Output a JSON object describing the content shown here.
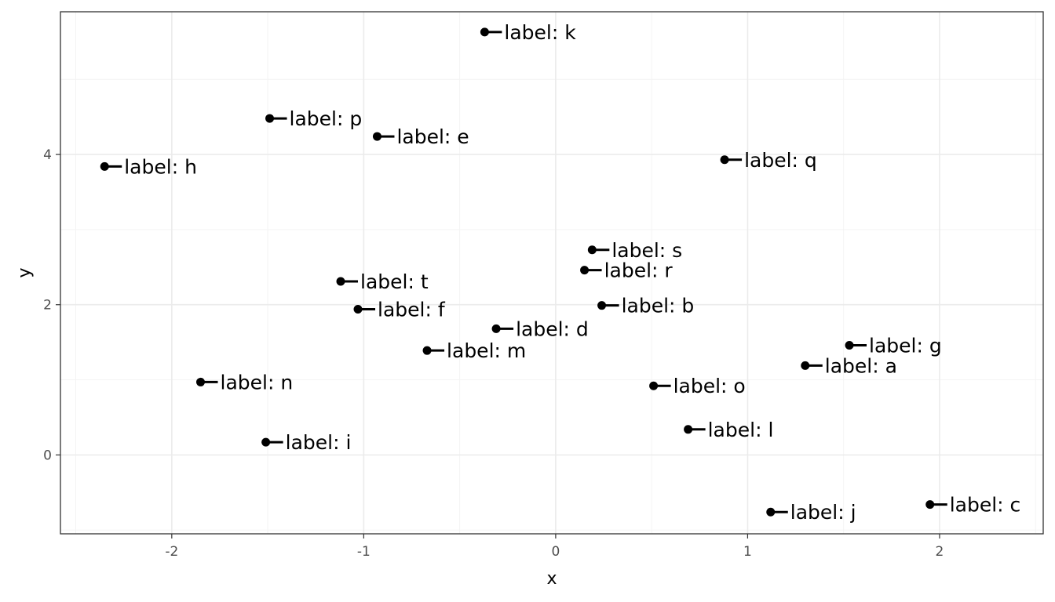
{
  "chart_data": {
    "type": "scatter",
    "title": "",
    "xlabel": "x",
    "ylabel": "y",
    "xlim": [
      -2.58,
      2.54
    ],
    "ylim": [
      -1.05,
      5.9
    ],
    "x_ticks": [
      -2,
      -1,
      0,
      1,
      2
    ],
    "y_ticks": [
      0,
      2,
      4
    ],
    "x_tick_labels": [
      "-2",
      "-1",
      "0",
      "1",
      "2"
    ],
    "y_tick_labels": [
      "0",
      "2",
      "4"
    ],
    "grid": true,
    "legend": "none",
    "points": [
      {
        "label": "label: a",
        "x": 1.3,
        "y": 1.19
      },
      {
        "label": "label: b",
        "x": 0.24,
        "y": 1.99
      },
      {
        "label": "label: c",
        "x": 1.95,
        "y": -0.66
      },
      {
        "label": "label: d",
        "x": -0.31,
        "y": 1.68
      },
      {
        "label": "label: e",
        "x": -0.93,
        "y": 4.24
      },
      {
        "label": "label: f",
        "x": -1.03,
        "y": 1.94
      },
      {
        "label": "label: g",
        "x": 1.53,
        "y": 1.46
      },
      {
        "label": "label: h",
        "x": -2.35,
        "y": 3.84
      },
      {
        "label": "label: i",
        "x": -1.51,
        "y": 0.17
      },
      {
        "label": "label: j",
        "x": 1.12,
        "y": -0.76
      },
      {
        "label": "label: k",
        "x": -0.37,
        "y": 5.63
      },
      {
        "label": "label: l",
        "x": 0.69,
        "y": 0.34
      },
      {
        "label": "label: m",
        "x": -0.67,
        "y": 1.39
      },
      {
        "label": "label: n",
        "x": -1.85,
        "y": 0.97
      },
      {
        "label": "label: o",
        "x": 0.51,
        "y": 0.92
      },
      {
        "label": "label: p",
        "x": -1.49,
        "y": 4.48
      },
      {
        "label": "label: q",
        "x": 0.88,
        "y": 3.93
      },
      {
        "label": "label: r",
        "x": 0.15,
        "y": 2.46
      },
      {
        "label": "label: s",
        "x": 0.19,
        "y": 2.73
      },
      {
        "label": "label: t",
        "x": -1.12,
        "y": 2.31
      }
    ]
  }
}
